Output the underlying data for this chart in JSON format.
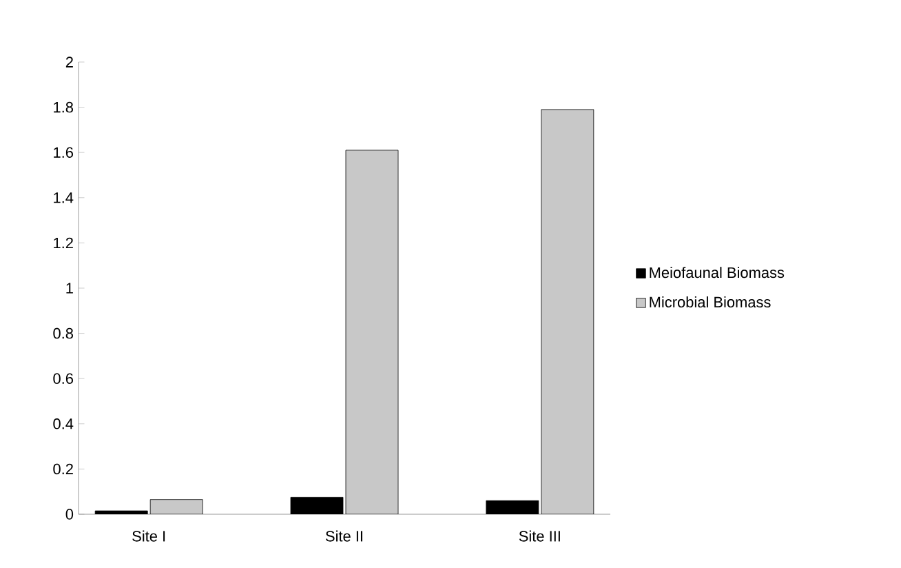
{
  "chart_data": {
    "type": "bar",
    "categories": [
      "Site I",
      "Site II",
      "Site III"
    ],
    "series": [
      {
        "name": "Meiofaunal Biomass",
        "color": "#000000",
        "values": [
          0.015,
          0.075,
          0.06
        ]
      },
      {
        "name": "Microbial Biomass",
        "color": "#c8c8c8",
        "values": [
          0.065,
          1.61,
          1.79
        ]
      }
    ],
    "ylim": [
      0,
      2
    ],
    "yticks": [
      0,
      0.2,
      0.4,
      0.6,
      0.8,
      1,
      1.2,
      1.4,
      1.6,
      1.8,
      2
    ],
    "legend": "right"
  }
}
